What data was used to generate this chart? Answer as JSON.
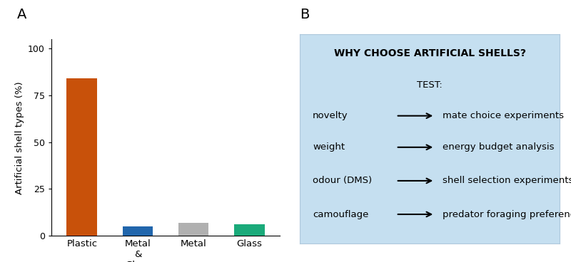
{
  "categories": [
    "Plastic",
    "Metal\n&\nGlass",
    "Metal",
    "Glass"
  ],
  "values": [
    84,
    5,
    7,
    6
  ],
  "bar_colors": [
    "#c8510a",
    "#2166ac",
    "#b0b0b0",
    "#1aaa7a"
  ],
  "ylabel": "Artificial shell types (%)",
  "ylim": [
    0,
    105
  ],
  "yticks": [
    0,
    25,
    50,
    75,
    100
  ],
  "panel_a_label": "A",
  "panel_b_label": "B",
  "box_bg_color": "#c5dff0",
  "box_border_color": "#aec8dc",
  "box_title": "WHY CHOOSE ARTIFICIAL SHELLS?",
  "box_subtitle": "TEST:",
  "rows": [
    {
      "left": "novelty",
      "right": "mate choice experiments"
    },
    {
      "left": "weight",
      "right": "energy budget analysis"
    },
    {
      "left": "odour (DMS)",
      "right": "shell selection experiments"
    },
    {
      "left": "camouflage",
      "right": "predator foraging preferences"
    }
  ]
}
